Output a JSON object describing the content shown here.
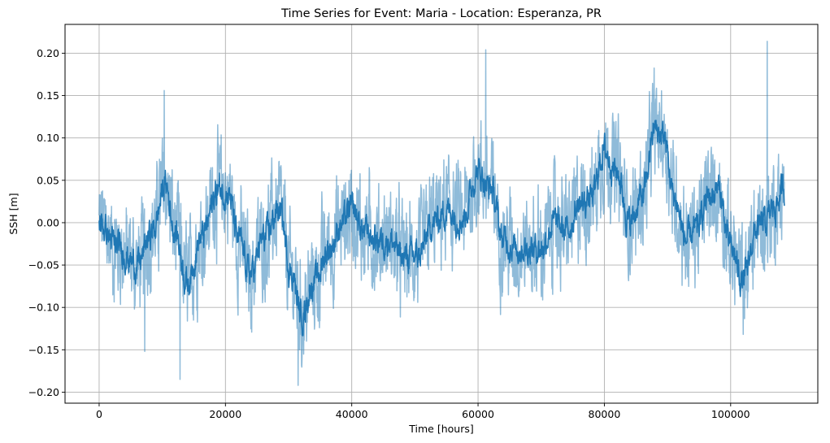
{
  "chart_data": {
    "type": "line",
    "title": "Time Series for Event: Maria - Location: Esperanza, PR",
    "xlabel": "Time [hours]",
    "ylabel": "SSH [m]",
    "xlim": [
      -5400,
      113800
    ],
    "ylim": [
      -0.213,
      0.234
    ],
    "x_ticks": [
      0,
      20000,
      40000,
      60000,
      80000,
      100000
    ],
    "x_tick_labels": [
      "0",
      "20000",
      "40000",
      "60000",
      "80000",
      "100000"
    ],
    "y_ticks": [
      -0.2,
      -0.15,
      -0.1,
      -0.05,
      0.0,
      0.05,
      0.1,
      0.15,
      0.2
    ],
    "y_tick_labels": [
      "−0.20",
      "−0.15",
      "−0.10",
      "−0.05",
      "0.00",
      "0.05",
      "0.10",
      "0.15",
      "0.20"
    ],
    "grid": true,
    "series": [
      {
        "role": "raw",
        "color": "#1f77b4",
        "opacity": 0.5,
        "x_range": [
          0,
          108500
        ],
        "noise_amplitude": 0.045,
        "extremes": [
          {
            "x": 12800,
            "y": -0.185
          },
          {
            "x": 31500,
            "y": -0.192
          },
          {
            "x": 61200,
            "y": 0.204
          },
          {
            "x": 105800,
            "y": 0.214
          },
          {
            "x": 10300,
            "y": 0.156
          },
          {
            "x": 7200,
            "y": -0.152
          }
        ]
      },
      {
        "role": "smoothed",
        "color": "#1f77b4",
        "opacity": 1.0,
        "x": [
          0,
          3000,
          6000,
          8500,
          10500,
          12000,
          14000,
          16000,
          19000,
          20500,
          22000,
          24000,
          26000,
          28500,
          30500,
          32000,
          34000,
          36500,
          38500,
          40000,
          42000,
          44000,
          46000,
          48000,
          50500,
          53000,
          55000,
          57500,
          60000,
          62000,
          64000,
          66000,
          68000,
          70000,
          72000,
          74000,
          76000,
          78000,
          80000,
          82000,
          84000,
          86000,
          88000,
          89500,
          91000,
          93000,
          94500,
          96500,
          98000,
          100000,
          102000,
          104000,
          105500,
          107000,
          108500
        ],
        "y": [
          0.0,
          -0.03,
          -0.05,
          -0.01,
          0.045,
          -0.01,
          -0.07,
          -0.02,
          0.04,
          0.035,
          -0.02,
          -0.06,
          -0.02,
          0.015,
          -0.06,
          -0.11,
          -0.07,
          -0.03,
          0.0,
          0.015,
          -0.01,
          -0.02,
          -0.02,
          -0.04,
          -0.04,
          0.0,
          0.015,
          0.005,
          0.06,
          0.04,
          -0.02,
          -0.03,
          -0.03,
          -0.03,
          0.0,
          -0.01,
          0.02,
          0.03,
          0.085,
          0.06,
          0.0,
          0.03,
          0.11,
          0.1,
          0.03,
          -0.02,
          -0.01,
          0.03,
          0.04,
          -0.03,
          -0.07,
          -0.01,
          0.0,
          0.02,
          0.04
        ],
        "noise_amplitude": 0.012
      }
    ]
  }
}
